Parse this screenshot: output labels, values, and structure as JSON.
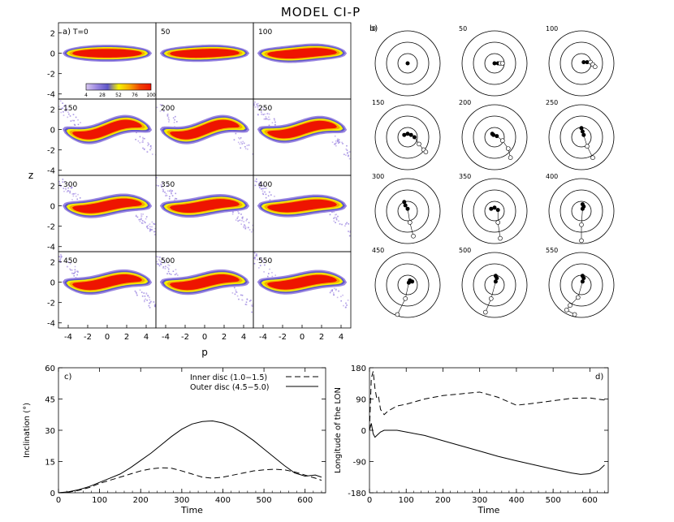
{
  "figure": {
    "title": "MODEL CI-P"
  },
  "panel_a": {
    "label": "a)",
    "xlabel": "p",
    "ylabel": "z",
    "xticks": [
      "-4",
      "-2",
      "0",
      "2",
      "4"
    ],
    "yticks": [
      "2",
      "0",
      "-2",
      "-4"
    ],
    "colorbar": {
      "ticks": [
        "4",
        "28",
        "52",
        "76",
        "100"
      ],
      "colors": [
        "#d8c8f0",
        "#9a86e0",
        "#5d55c8",
        "#f5f200",
        "#f7a800",
        "#f04000",
        "#ee1400"
      ]
    },
    "snapshots": [
      {
        "t": "T=0",
        "warp": 0.0,
        "thick": 0.42,
        "halo": 0.0
      },
      {
        "t": "50",
        "warp": 0.05,
        "thick": 0.42,
        "halo": 0.0
      },
      {
        "t": "100",
        "warp": 0.12,
        "thick": 0.45,
        "halo": 0.0
      },
      {
        "t": "150",
        "warp": 0.55,
        "thick": 0.5,
        "halo": 0.6
      },
      {
        "t": "200",
        "warp": 0.55,
        "thick": 0.5,
        "halo": 0.45
      },
      {
        "t": "250",
        "warp": 0.45,
        "thick": 0.5,
        "halo": 0.9
      },
      {
        "t": "300",
        "warp": 0.3,
        "thick": 0.5,
        "halo": 1.0
      },
      {
        "t": "350",
        "warp": 0.25,
        "thick": 0.5,
        "halo": 0.8
      },
      {
        "t": "400",
        "warp": 0.2,
        "thick": 0.5,
        "halo": 0.7
      },
      {
        "t": "450",
        "warp": 0.35,
        "thick": 0.5,
        "halo": 0.8
      },
      {
        "t": "500",
        "warp": 0.35,
        "thick": 0.5,
        "halo": 0.7
      },
      {
        "t": "550",
        "warp": 0.3,
        "thick": 0.5,
        "halo": 0.6
      }
    ]
  },
  "panel_b": {
    "label": "b)",
    "snapshots": [
      {
        "t": "0",
        "filled": [
          [
            0,
            0
          ]
        ],
        "open": []
      },
      {
        "t": "50",
        "filled": [
          [
            0,
            0
          ],
          [
            0.3,
            0
          ]
        ],
        "open": [
          [
            0.5,
            0
          ],
          [
            0.7,
            0
          ]
        ]
      },
      {
        "t": "100",
        "filled": [
          [
            0.2,
            0.1
          ],
          [
            0.5,
            0.1
          ]
        ],
        "open": [
          [
            0.8,
            0.1
          ],
          [
            1.0,
            -0.1
          ],
          [
            1.2,
            -0.3
          ]
        ]
      },
      {
        "t": "150",
        "filled": [
          [
            -0.3,
            0.2
          ],
          [
            0,
            0.3
          ],
          [
            0.3,
            0.2
          ],
          [
            0.6,
            0
          ]
        ],
        "open": [
          [
            1.0,
            -0.6
          ],
          [
            1.4,
            -1.1
          ],
          [
            1.6,
            -1.3
          ]
        ]
      },
      {
        "t": "200",
        "filled": [
          [
            -0.2,
            0.3
          ],
          [
            -0.1,
            0.2
          ],
          [
            0.2,
            0.1
          ]
        ],
        "open": [
          [
            0.7,
            -0.3
          ],
          [
            1.2,
            -1.0
          ],
          [
            1.4,
            -1.8
          ]
        ]
      },
      {
        "t": "250",
        "filled": [
          [
            0,
            0.8
          ],
          [
            0.1,
            0.5
          ],
          [
            0.2,
            0.2
          ]
        ],
        "open": [
          [
            0.5,
            -0.8
          ],
          [
            1.0,
            -1.8
          ]
        ]
      },
      {
        "t": "300",
        "filled": [
          [
            -0.3,
            0.8
          ],
          [
            -0.2,
            0.5
          ],
          [
            0,
            0.2
          ]
        ],
        "open": [
          [
            0.2,
            -1.0
          ],
          [
            0.5,
            -2.2
          ]
        ]
      },
      {
        "t": "350",
        "filled": [
          [
            -0.3,
            0.2
          ],
          [
            0,
            0.3
          ],
          [
            0.3,
            0.1
          ]
        ],
        "open": [
          [
            0.3,
            -1.0
          ],
          [
            0.5,
            -2.4
          ]
        ]
      },
      {
        "t": "400",
        "filled": [
          [
            0.1,
            0.6
          ],
          [
            0.2,
            0.4
          ],
          [
            0.1,
            0.2
          ]
        ],
        "open": [
          [
            0.0,
            -1.2
          ],
          [
            0,
            -2.6
          ]
        ]
      },
      {
        "t": "450",
        "filled": [
          [
            0.2,
            0.4
          ],
          [
            0.4,
            0.3
          ],
          [
            0.1,
            0.2
          ]
        ],
        "open": [
          [
            -0.2,
            -1.2
          ],
          [
            -0.9,
            -2.6
          ]
        ]
      },
      {
        "t": "500",
        "filled": [
          [
            0.1,
            0.8
          ],
          [
            0.2,
            0.6
          ],
          [
            0.1,
            0.3
          ]
        ],
        "open": [
          [
            -0.3,
            -1.2
          ],
          [
            -0.8,
            -2.4
          ]
        ]
      },
      {
        "t": "550",
        "filled": [
          [
            0.1,
            0.8
          ],
          [
            0.2,
            0.6
          ],
          [
            0.1,
            0.3
          ]
        ],
        "open": [
          [
            -0.3,
            -1.1
          ],
          [
            -1.0,
            -1.8
          ],
          [
            -1.3,
            -2.2
          ],
          [
            -0.6,
            -2.6
          ]
        ]
      }
    ]
  },
  "panel_c": {
    "label": "c)",
    "xlabel": "Time",
    "ylabel": "Inclination (°)",
    "legend": [
      {
        "name": "Inner disc (1.0−1.5)",
        "style": "dashed"
      },
      {
        "name": "Outer disc (4.5−5.0)",
        "style": "solid"
      }
    ],
    "xticks": [
      "0",
      "100",
      "200",
      "300",
      "400",
      "500",
      "600"
    ],
    "yticks": [
      "0",
      "15",
      "30",
      "45",
      "60"
    ]
  },
  "panel_d": {
    "label": "d)",
    "xlabel": "Time",
    "ylabel": "Longitude of the LON",
    "xticks": [
      "0",
      "100",
      "200",
      "300",
      "400",
      "500",
      "600"
    ],
    "yticks": [
      "180",
      "90",
      "0",
      "-90",
      "-180"
    ]
  },
  "chart_data": [
    {
      "type": "scatter",
      "subplot": "a",
      "xlabel": "p",
      "ylabel": "z",
      "xlim": [
        -5,
        5
      ],
      "ylim": [
        -4.5,
        3
      ],
      "colorbar_range": [
        4,
        100
      ],
      "times": [
        0,
        50,
        100,
        150,
        200,
        250,
        300,
        350,
        400,
        450,
        500,
        550
      ]
    },
    {
      "type": "scatter",
      "subplot": "b",
      "times": [
        0,
        50,
        100,
        150,
        200,
        250,
        300,
        350,
        400,
        450,
        500,
        550
      ]
    },
    {
      "type": "line",
      "subplot": "c",
      "xlabel": "Time",
      "ylabel": "Inclination (°)",
      "xlim": [
        0,
        650
      ],
      "ylim": [
        0,
        60
      ],
      "series": [
        {
          "name": "Inner disc (1.0−1.5)",
          "style": "dashed",
          "x": [
            0,
            25,
            50,
            75,
            100,
            125,
            150,
            175,
            200,
            225,
            250,
            275,
            300,
            325,
            350,
            375,
            400,
            425,
            450,
            475,
            500,
            525,
            550,
            575,
            600,
            625,
            640
          ],
          "y": [
            0,
            0.3,
            1.2,
            2.5,
            4.5,
            6,
            7.5,
            9,
            10.5,
            11.5,
            12,
            11.8,
            10.5,
            9,
            7.5,
            7,
            7.5,
            8.5,
            9.5,
            10.5,
            11,
            11.3,
            11,
            10,
            8.5,
            7,
            6
          ]
        },
        {
          "name": "Outer disc (4.5−5.0)",
          "style": "solid",
          "x": [
            0,
            25,
            50,
            75,
            100,
            125,
            150,
            175,
            200,
            225,
            250,
            275,
            300,
            325,
            350,
            375,
            400,
            425,
            450,
            475,
            500,
            525,
            550,
            575,
            600,
            625,
            640
          ],
          "y": [
            0,
            0.5,
            1.5,
            3,
            5,
            7,
            9,
            12,
            15.5,
            19,
            23,
            27,
            30.5,
            33,
            34.2,
            34.5,
            33.5,
            31.5,
            28.5,
            25,
            21,
            17,
            13,
            9.5,
            8,
            8.5,
            7.5
          ]
        }
      ]
    },
    {
      "type": "line",
      "subplot": "d",
      "xlabel": "Time",
      "ylabel": "Longitude of the LON",
      "xlim": [
        0,
        650
      ],
      "ylim": [
        -180,
        180
      ],
      "series": [
        {
          "name": "",
          "style": "dashed",
          "x": [
            0,
            5,
            10,
            15,
            20,
            25,
            30,
            40,
            50,
            75,
            100,
            150,
            200,
            250,
            300,
            350,
            400,
            450,
            500,
            550,
            600,
            640
          ],
          "y": [
            0,
            150,
            170,
            120,
            90,
            95,
            60,
            45,
            55,
            70,
            75,
            90,
            100,
            105,
            110,
            95,
            72,
            78,
            85,
            92,
            93,
            87
          ]
        },
        {
          "name": "",
          "style": "solid",
          "x": [
            0,
            5,
            10,
            15,
            20,
            30,
            40,
            50,
            75,
            100,
            150,
            200,
            250,
            300,
            350,
            400,
            450,
            500,
            550,
            575,
            600,
            625,
            640
          ],
          "y": [
            0,
            20,
            -10,
            -20,
            -15,
            -5,
            0,
            0,
            0,
            -5,
            -15,
            -30,
            -45,
            -60,
            -75,
            -88,
            -100,
            -112,
            -123,
            -127,
            -125,
            -115,
            -100
          ]
        }
      ]
    }
  ]
}
